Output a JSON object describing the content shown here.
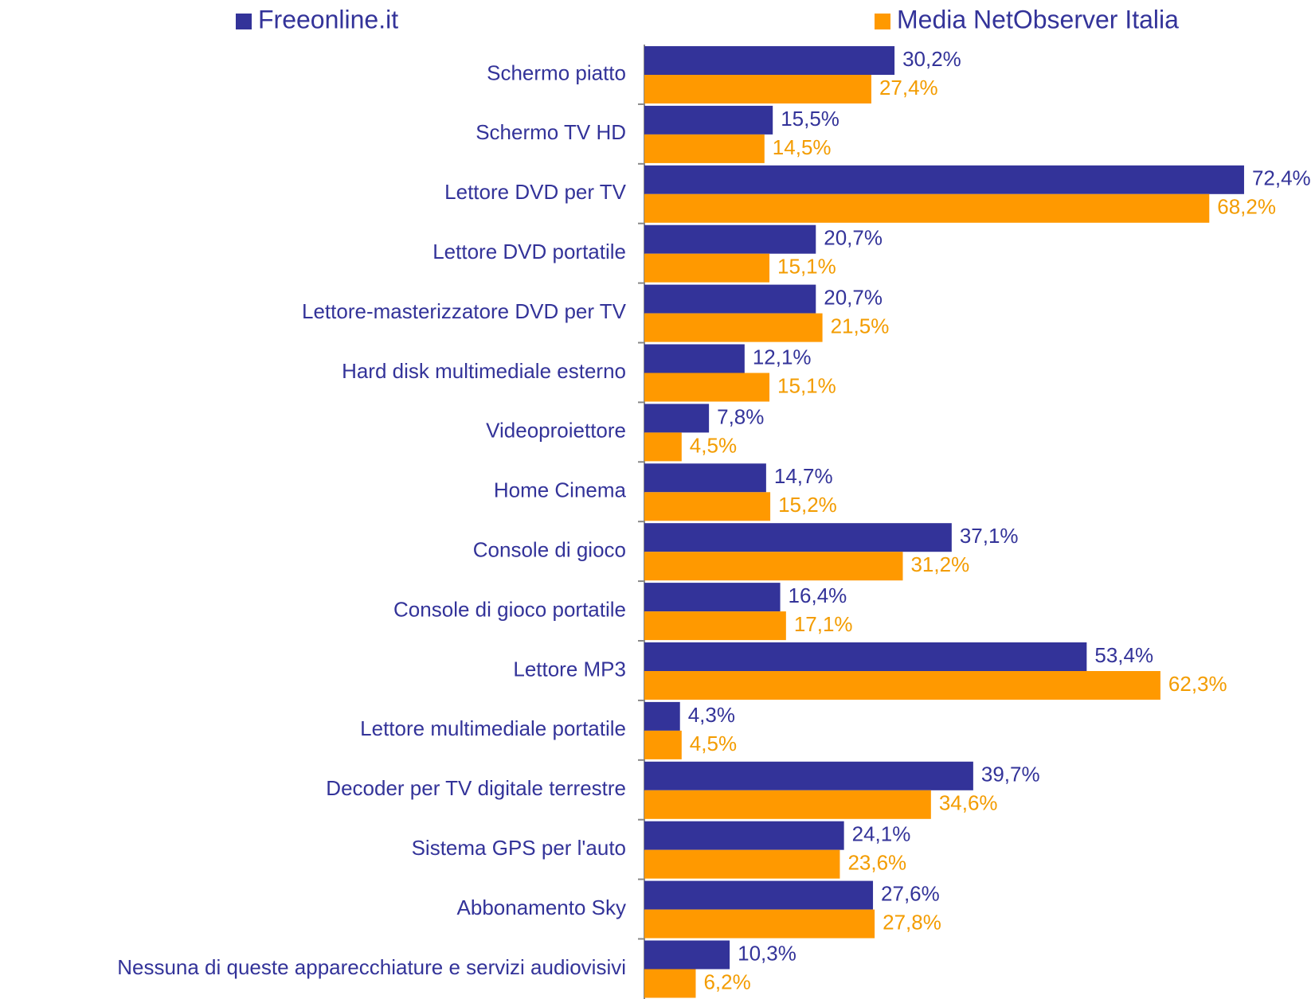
{
  "chart_data": {
    "type": "bar",
    "orientation": "horizontal",
    "categories": [
      "Schermo piatto",
      "Schermo TV HD",
      "Lettore DVD per TV",
      "Lettore DVD portatile",
      "Lettore-masterizzatore DVD per TV",
      "Hard disk multimediale esterno",
      "Videoproiettore",
      "Home Cinema",
      "Console di gioco",
      "Console di gioco portatile",
      "Lettore MP3",
      "Lettore multimediale portatile",
      "Decoder per TV digitale terrestre",
      "Sistema GPS per l'auto",
      "Abbonamento Sky",
      "Nessuna di queste apparecchiature e servizi audiovisivi"
    ],
    "series": [
      {
        "name": "Freeonline.it",
        "color": "#333399",
        "values": [
          30.2,
          15.5,
          72.4,
          20.7,
          20.7,
          12.1,
          7.8,
          14.7,
          37.1,
          16.4,
          53.4,
          4.3,
          39.7,
          24.1,
          27.6,
          10.3
        ],
        "value_labels": [
          "30,2%",
          "15,5%",
          "72,4%",
          "20,7%",
          "20,7%",
          "12,1%",
          "7,8%",
          "14,7%",
          "37,1%",
          "16,4%",
          "53,4%",
          "4,3%",
          "39,7%",
          "24,1%",
          "27,6%",
          "10,3%"
        ]
      },
      {
        "name": "Media NetObserver Italia",
        "color": "#FF9900",
        "values": [
          27.4,
          14.5,
          68.2,
          15.1,
          21.5,
          15.1,
          4.5,
          15.2,
          31.2,
          17.1,
          62.3,
          4.5,
          34.6,
          23.6,
          27.8,
          6.2
        ],
        "value_labels": [
          "27,4%",
          "14,5%",
          "68,2%",
          "15,1%",
          "21,5%",
          "15,1%",
          "4,5%",
          "15,2%",
          "31,2%",
          "17,1%",
          "62,3%",
          "4,5%",
          "34,6%",
          "23,6%",
          "27,8%",
          "6,2%"
        ]
      }
    ],
    "xlim": [
      0,
      80
    ],
    "legend": "top"
  }
}
